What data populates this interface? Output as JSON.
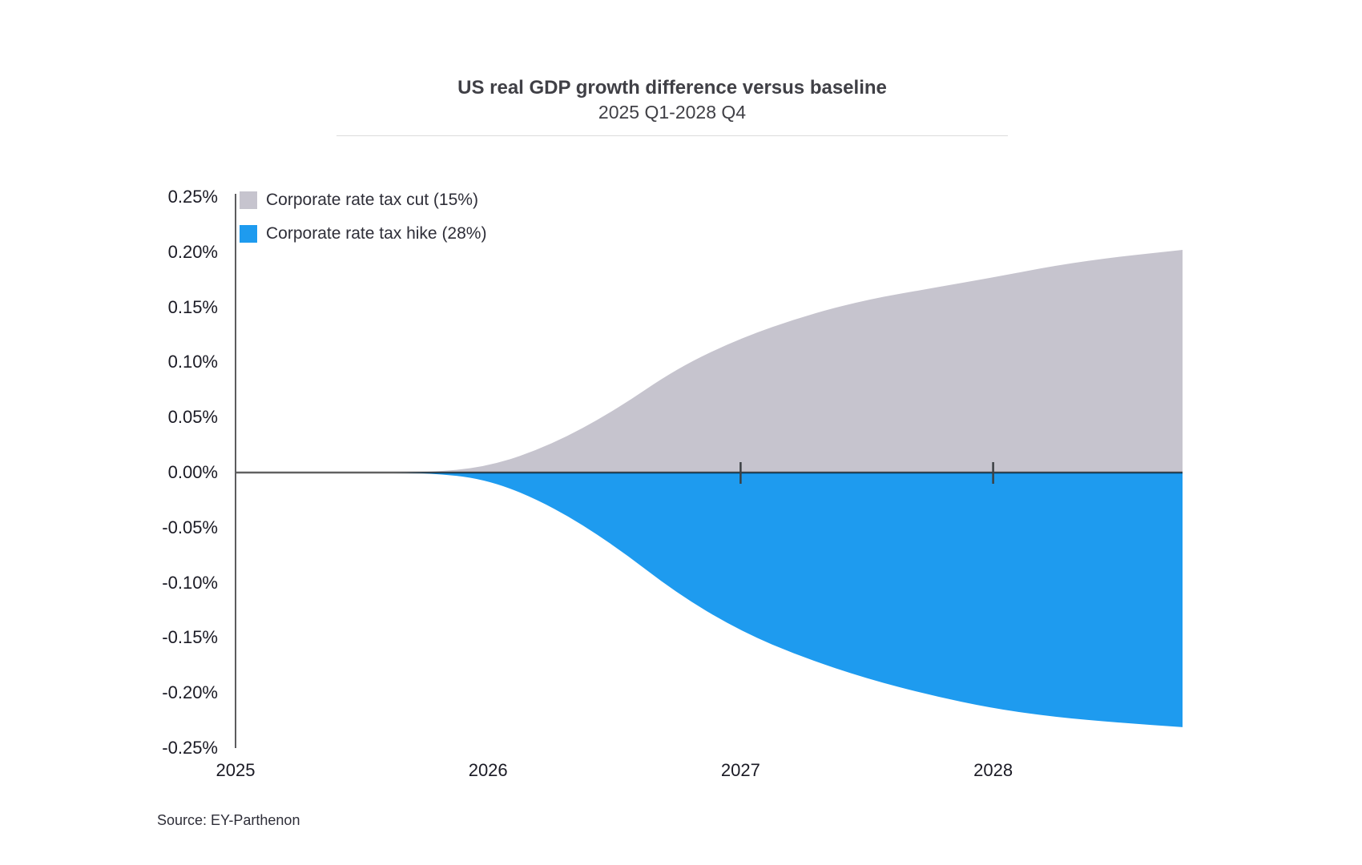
{
  "source": "Source: EY-Parthenon",
  "colors": {
    "axis": "#4a4a4d",
    "zero_line": "#000000",
    "zero_line_opacity": 0.62,
    "tick": "#3c4043",
    "divider": "#dcdcdc",
    "title_text": "#404046",
    "label_text": "#1a1a24"
  },
  "chart_data": {
    "type": "area",
    "title": "US real GDP growth difference versus baseline",
    "subtitle": "2025 Q1-2028 Q4",
    "x": [
      "2025 Q1",
      "2025 Q2",
      "2025 Q3",
      "2025 Q4",
      "2026 Q1",
      "2026 Q2",
      "2026 Q3",
      "2026 Q4",
      "2027 Q1",
      "2027 Q2",
      "2027 Q3",
      "2027 Q4",
      "2028 Q1",
      "2028 Q2",
      "2028 Q3",
      "2028 Q4"
    ],
    "series": [
      {
        "name": "Corporate rate tax cut (15%)",
        "color": "#c6c4ce",
        "values": [
          0,
          0,
          0,
          0,
          0.005,
          0.025,
          0.056,
          0.095,
          0.122,
          0.142,
          0.157,
          0.167,
          0.177,
          0.188,
          0.196,
          0.202
        ]
      },
      {
        "name": "Corporate rate tax hike (28%)",
        "color": "#1e9bef",
        "values": [
          0,
          0,
          0,
          0,
          -0.006,
          -0.03,
          -0.066,
          -0.11,
          -0.144,
          -0.168,
          -0.187,
          -0.202,
          -0.214,
          -0.222,
          -0.227,
          -0.231
        ]
      }
    ],
    "ylabel_unit": "%",
    "ylim": [
      -0.25,
      0.25
    ],
    "ytick_values": [
      0.25,
      0.2,
      0.15,
      0.1,
      0.05,
      0.0,
      -0.05,
      -0.1,
      -0.15,
      -0.2,
      -0.25
    ],
    "ytick_labels": [
      "0.25%",
      "0.20%",
      "0.15%",
      "0.10%",
      "0.05%",
      "0.00%",
      "-0.05%",
      "-0.10%",
      "-0.15%",
      "-0.20%",
      "-0.25%"
    ],
    "xtick_labels": [
      "2025",
      "2026",
      "2027",
      "2028"
    ],
    "xtick_quarter_index": [
      0,
      4,
      8,
      12
    ],
    "zero_line_tick_years": [
      "2027",
      "2028"
    ],
    "baseline": 0,
    "grid": false,
    "legend_position": "top-left"
  }
}
